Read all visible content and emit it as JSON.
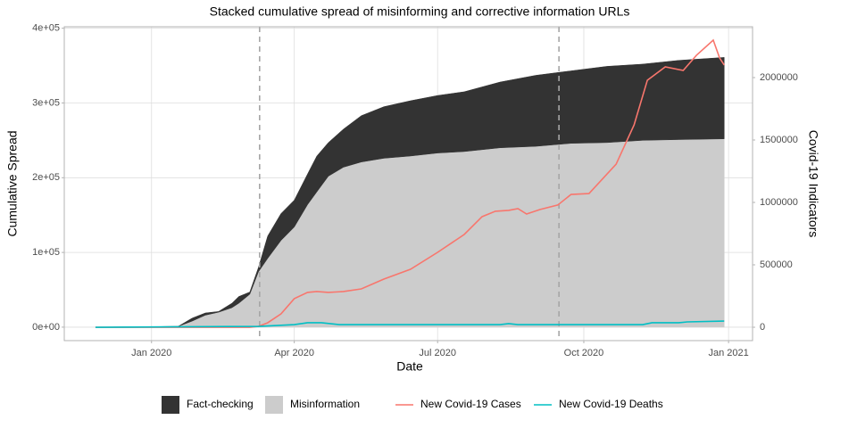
{
  "chart_data": {
    "type": "stacked-area-dual",
    "title": "Stacked cumulative spread of misinforming and corrective information URLs",
    "xlabel": "Date",
    "ylabel": "Cumulative Spread",
    "y2label": "Covid-19 Indicators",
    "x": [
      2019.903,
      2020.046,
      2020.07,
      2020.093,
      2020.116,
      2020.139,
      2020.151,
      2020.17,
      2020.185,
      2020.201,
      2020.224,
      2020.247,
      2020.27,
      2020.286,
      2020.306,
      2020.332,
      2020.363,
      2020.402,
      2020.448,
      2020.495,
      2020.541,
      2020.603,
      2020.665,
      2020.726,
      2020.788,
      2020.85,
      2020.912,
      2020.991
    ],
    "series": [
      {
        "name": "Misinformation",
        "color": "#cccccc",
        "values": [
          0,
          1000,
          8000,
          16000,
          20000,
          26000,
          32000,
          44000,
          74000,
          92000,
          116000,
          134000,
          164000,
          181000,
          202000,
          214000,
          221000,
          226000,
          229000,
          233000,
          235000,
          240000,
          242000,
          246000,
          247000,
          250000,
          251000,
          252000
        ]
      },
      {
        "name": "Fact-checking",
        "color": "#333333",
        "values": [
          0,
          0,
          4000,
          3000,
          1000,
          6000,
          9000,
          3000,
          6000,
          30000,
          36000,
          36000,
          41000,
          48000,
          45000,
          51000,
          62000,
          69000,
          74000,
          77000,
          80000,
          88000,
          95000,
          97000,
          102000,
          102000,
          106000,
          109000
        ]
      },
      {
        "name": "New Covid-19 Cases",
        "color": "#f8766d",
        "axis": "y2",
        "x": [
          2019.903,
          2020.17,
          2020.185,
          2020.201,
          2020.224,
          2020.247,
          2020.27,
          2020.286,
          2020.306,
          2020.332,
          2020.363,
          2020.402,
          2020.448,
          2020.495,
          2020.541,
          2020.572,
          2020.595,
          2020.618,
          2020.634,
          2020.649,
          2020.672,
          2020.703,
          2020.726,
          2020.757,
          2020.804,
          2020.835,
          2020.858,
          2020.889,
          2020.92,
          2020.943,
          2020.972,
          2020.983,
          2020.991
        ],
        "values": [
          0,
          0,
          7000,
          36000,
          107000,
          229000,
          279000,
          286000,
          279000,
          286000,
          307000,
          386000,
          464000,
          600000,
          743000,
          886000,
          929000,
          936000,
          950000,
          907000,
          943000,
          979000,
          1064000,
          1071000,
          1307000,
          1621000,
          1979000,
          2086000,
          2057000,
          2179000,
          2300000,
          2157000,
          2100000
        ]
      },
      {
        "name": "New Covid-19 Deaths",
        "color": "#00bfc4",
        "axis": "y2",
        "x": [
          2019.903,
          2020.185,
          2020.247,
          2020.27,
          2020.294,
          2020.325,
          2020.603,
          2020.618,
          2020.634,
          2020.85,
          2020.866,
          2020.912,
          2020.927,
          2020.991
        ],
        "values": [
          0,
          7000,
          21000,
          36000,
          36000,
          21000,
          21000,
          29000,
          21000,
          21000,
          36000,
          36000,
          43000,
          50000
        ]
      }
    ],
    "xlim": [
      2019.849,
      2021.04
    ],
    "xticks": [
      {
        "value": 2020.0,
        "label": "Jan 2020"
      },
      {
        "value": 2020.247,
        "label": "Apr 2020"
      },
      {
        "value": 2020.495,
        "label": "Jul 2020"
      },
      {
        "value": 2020.748,
        "label": "Oct 2020"
      },
      {
        "value": 2020.9985,
        "label": "Jan 2021"
      }
    ],
    "ylim": [
      -18000,
      402000
    ],
    "yticks": [
      {
        "value": 0,
        "label": "0e+00"
      },
      {
        "value": 100000,
        "label": "1e+05"
      },
      {
        "value": 200000,
        "label": "2e+05"
      },
      {
        "value": 300000,
        "label": "3e+05"
      },
      {
        "value": 400000,
        "label": "4e+05"
      }
    ],
    "y2lim": [
      -107000,
      2407000
    ],
    "y2ticks": [
      0,
      500000,
      1000000,
      1500000,
      2000000
    ],
    "vlines": [
      2020.187,
      2020.705
    ],
    "grid": true,
    "legend": "bottom"
  }
}
